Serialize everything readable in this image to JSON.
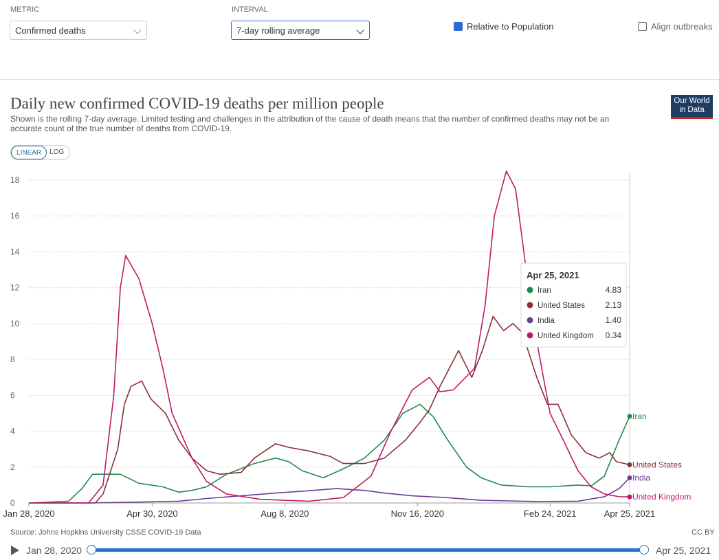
{
  "controls": {
    "metric_label": "METRIC",
    "metric": "Confirmed deaths",
    "interval_label": "INTERVAL",
    "interval": "7-day rolling average",
    "relative": "Relative to Population",
    "align": "Align outbreaks"
  },
  "logo": [
    "Our World",
    "in Data"
  ],
  "chart_data": {
    "type": "line",
    "title": "Daily new confirmed COVID-19 deaths per million people",
    "subtitle": "Shown is the rolling 7-day average. Limited testing and challenges in the attribution of the cause of death means that the number of confirmed deaths may not be an accurate count of the true number of deaths from COVID-19.",
    "scale_buttons": [
      "LINEAR",
      "LOG"
    ],
    "log_scale": false,
    "grid": true,
    "xlim": [
      "2020-01-28",
      "2021-04-25"
    ],
    "xticks": [
      {
        "value": "2020-01-28",
        "label": "Jan 28, 2020"
      },
      {
        "value": "2020-04-30",
        "label": "Apr 30, 2020"
      },
      {
        "value": "2020-08-08",
        "label": "Aug 8, 2020"
      },
      {
        "value": "2020-11-16",
        "label": "Nov 16, 2020"
      },
      {
        "value": "2021-02-24",
        "label": "Feb 24, 2021"
      },
      {
        "value": "2021-04-25",
        "label": "Apr 25, 2021"
      }
    ],
    "ylim": [
      0,
      18
    ],
    "yticks": [
      0,
      2,
      4,
      6,
      8,
      10,
      12,
      14,
      16,
      18
    ],
    "series": [
      {
        "name": "Iran",
        "color": "#1f8a4c",
        "x": [
          "2020-01-28",
          "2020-02-27",
          "2020-03-08",
          "2020-03-16",
          "2020-03-24",
          "2020-04-06",
          "2020-04-20",
          "2020-05-08",
          "2020-05-20",
          "2020-05-30",
          "2020-06-10",
          "2020-06-25",
          "2020-07-16",
          "2020-08-01",
          "2020-08-11",
          "2020-08-21",
          "2020-09-06",
          "2020-09-21",
          "2020-10-07",
          "2020-10-22",
          "2020-11-05",
          "2020-11-18",
          "2020-11-28",
          "2020-12-08",
          "2020-12-23",
          "2021-01-03",
          "2021-01-18",
          "2021-02-08",
          "2021-02-24",
          "2021-03-17",
          "2021-03-27",
          "2021-04-06",
          "2021-04-17",
          "2021-04-25"
        ],
        "values": [
          0,
          0.1,
          0.8,
          1.6,
          1.6,
          1.6,
          1.1,
          0.9,
          0.6,
          0.7,
          0.9,
          1.6,
          2.2,
          2.5,
          2.3,
          1.8,
          1.4,
          1.9,
          2.5,
          3.5,
          5,
          5.5,
          4.8,
          3.6,
          2,
          1.4,
          1,
          0.9,
          0.9,
          1,
          0.95,
          1.5,
          3.5,
          4.83
        ]
      },
      {
        "name": "United States",
        "color": "#8a2f38",
        "x": [
          "2020-01-28",
          "2020-03-18",
          "2020-03-24",
          "2020-04-04",
          "2020-04-09",
          "2020-04-14",
          "2020-04-22",
          "2020-04-29",
          "2020-05-10",
          "2020-05-20",
          "2020-05-30",
          "2020-06-10",
          "2020-06-20",
          "2020-07-06",
          "2020-07-16",
          "2020-08-01",
          "2020-08-11",
          "2020-08-26",
          "2020-09-11",
          "2020-09-21",
          "2020-10-07",
          "2020-10-22",
          "2020-11-07",
          "2020-11-18",
          "2020-11-25",
          "2020-12-03",
          "2020-12-17",
          "2020-12-27",
          "2021-01-04",
          "2021-01-12",
          "2021-01-20",
          "2021-01-27",
          "2021-02-03",
          "2021-02-14",
          "2021-02-22",
          "2021-03-02",
          "2021-03-12",
          "2021-03-23",
          "2021-04-02",
          "2021-04-10",
          "2021-04-15",
          "2021-04-25"
        ],
        "values": [
          0,
          0,
          0.5,
          3,
          5.5,
          6.5,
          6.8,
          5.8,
          5,
          3.5,
          2.5,
          1.8,
          1.6,
          1.7,
          2.5,
          3.3,
          3.1,
          2.9,
          2.6,
          2.2,
          2.2,
          2.5,
          3.5,
          4.5,
          5.2,
          6.5,
          8.5,
          7,
          8.5,
          10.4,
          9.6,
          10,
          9.5,
          7,
          5.5,
          5.5,
          3.8,
          2.8,
          2.5,
          2.8,
          2.3,
          2.13
        ]
      },
      {
        "name": "India",
        "color": "#6b3d93",
        "x": [
          "2020-01-28",
          "2020-03-13",
          "2020-04-20",
          "2020-05-20",
          "2020-06-10",
          "2020-07-06",
          "2020-08-01",
          "2020-08-26",
          "2020-09-16",
          "2020-10-07",
          "2020-10-22",
          "2020-11-12",
          "2020-12-08",
          "2021-01-03",
          "2021-02-14",
          "2021-03-17",
          "2021-04-06",
          "2021-04-17",
          "2021-04-25"
        ],
        "values": [
          0,
          0,
          0.05,
          0.1,
          0.25,
          0.4,
          0.55,
          0.68,
          0.8,
          0.7,
          0.55,
          0.4,
          0.3,
          0.15,
          0.08,
          0.1,
          0.35,
          0.8,
          1.4
        ]
      },
      {
        "name": "United Kingdom",
        "color": "#c0186c",
        "x": [
          "2020-01-28",
          "2020-03-13",
          "2020-03-24",
          "2020-04-01",
          "2020-04-06",
          "2020-04-10",
          "2020-04-20",
          "2020-04-30",
          "2020-05-08",
          "2020-05-15",
          "2020-05-30",
          "2020-06-10",
          "2020-06-25",
          "2020-07-21",
          "2020-08-26",
          "2020-09-21",
          "2020-10-12",
          "2020-10-27",
          "2020-11-12",
          "2020-11-25",
          "2020-12-03",
          "2020-12-13",
          "2020-12-29",
          "2021-01-06",
          "2021-01-13",
          "2021-01-22",
          "2021-01-29",
          "2021-02-06",
          "2021-02-14",
          "2021-02-24",
          "2021-03-06",
          "2021-03-17",
          "2021-03-27",
          "2021-04-06",
          "2021-04-17",
          "2021-04-25"
        ],
        "values": [
          0,
          0,
          1,
          6,
          12,
          13.8,
          12.5,
          10,
          7.5,
          5,
          2.5,
          1.2,
          0.5,
          0.2,
          0.1,
          0.3,
          1.5,
          4,
          6.3,
          7,
          6.2,
          6.3,
          7.5,
          11,
          16,
          18.5,
          17.5,
          13,
          9,
          5,
          3.5,
          1.8,
          0.9,
          0.5,
          0.35,
          0.34
        ]
      }
    ],
    "tooltip": {
      "title": "Apr 25, 2021",
      "value_labels": [
        "4.83",
        "2.13",
        "1.40",
        "0.34"
      ]
    }
  },
  "source": "Source: Johns Hopkins University CSSE COVID-19 Data",
  "license": "CC BY",
  "timeline": {
    "start": "Jan 28, 2020",
    "end": "Apr 25, 2021"
  }
}
